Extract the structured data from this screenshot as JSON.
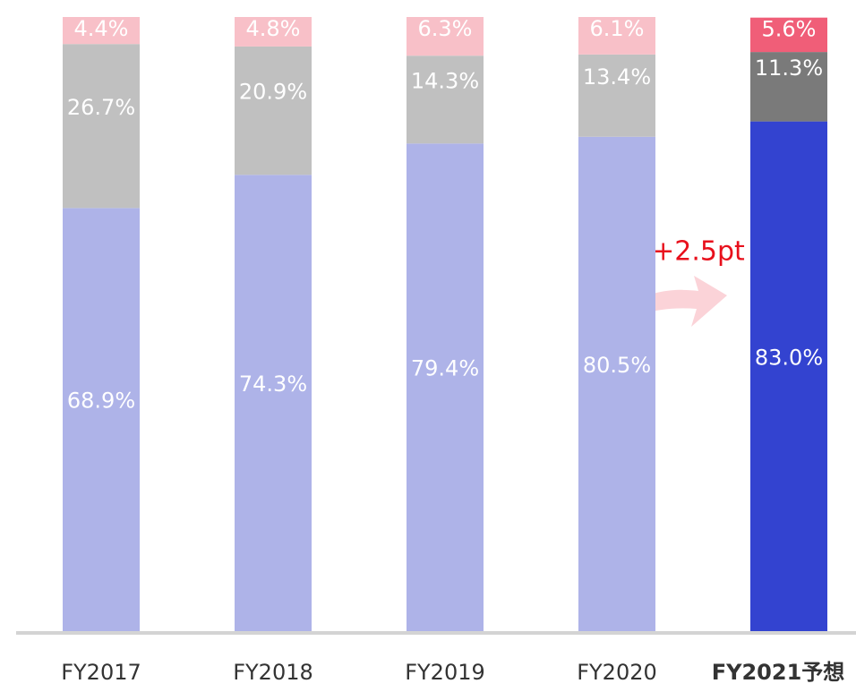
{
  "chart_data": {
    "type": "stacked_bar",
    "categories": [
      "FY2017",
      "FY2018",
      "FY2019",
      "FY2020",
      "FY2021予想"
    ],
    "highlight_category": 4,
    "annotation": "+2.5pt",
    "ylim": [
      0,
      100
    ],
    "series": [
      {
        "colors": [
          "#aeb3e8",
          "#aeb3e8",
          "#aeb3e8",
          "#aeb3e8",
          "#3343d0"
        ],
        "values": [
          68.9,
          74.3,
          79.4,
          80.5,
          83.0
        ],
        "value_labels": [
          "68.9%",
          "74.3%",
          "79.4%",
          "80.5%",
          "83.0%"
        ]
      },
      {
        "colors": [
          "#c0c0c0",
          "#c0c0c0",
          "#c0c0c0",
          "#c0c0c0",
          "#7a7a7a"
        ],
        "values": [
          26.7,
          20.9,
          14.3,
          13.4,
          11.3
        ],
        "value_labels": [
          "26.7%",
          "20.9%",
          "14.3%",
          "13.4%",
          "11.3%"
        ]
      },
      {
        "colors": [
          "#f8c0c8",
          "#f8c0c8",
          "#f8c0c8",
          "#f8c0c8",
          "#f05e78"
        ],
        "values": [
          4.4,
          4.8,
          6.3,
          6.1,
          5.6
        ],
        "value_labels": [
          "4.4%",
          "4.8%",
          "6.3%",
          "6.1%",
          "5.6%"
        ]
      }
    ]
  }
}
